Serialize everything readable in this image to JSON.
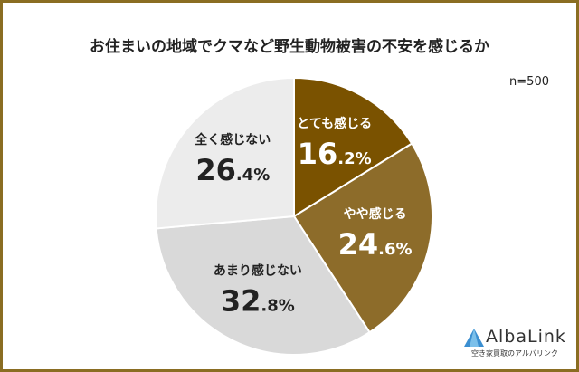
{
  "chart_data": {
    "type": "pie",
    "title": "お住まいの地域でクマなど野生動物被害の不安を感じるか",
    "note": "n=500",
    "slices": [
      {
        "label": "とても感じる",
        "value": 16.2,
        "int": "16",
        "dec": ".2%",
        "color": "#7a5200",
        "text_color": "#ffffff"
      },
      {
        "label": "やや感じる",
        "value": 24.6,
        "int": "24",
        "dec": ".6%",
        "color": "#8d6c2a",
        "text_color": "#ffffff"
      },
      {
        "label": "あまり感じない",
        "value": 32.8,
        "int": "32",
        "dec": ".8%",
        "color": "#d9d9d9",
        "text_color": "#222222"
      },
      {
        "label": "全く感じない",
        "value": 26.4,
        "int": "26",
        "dec": ".4%",
        "color": "#ececec",
        "text_color": "#222222"
      }
    ],
    "start": "12 o'clock, clockwise"
  },
  "logo": {
    "name": "AlbaLink",
    "sub": "空き家買取のアルバリンク"
  }
}
